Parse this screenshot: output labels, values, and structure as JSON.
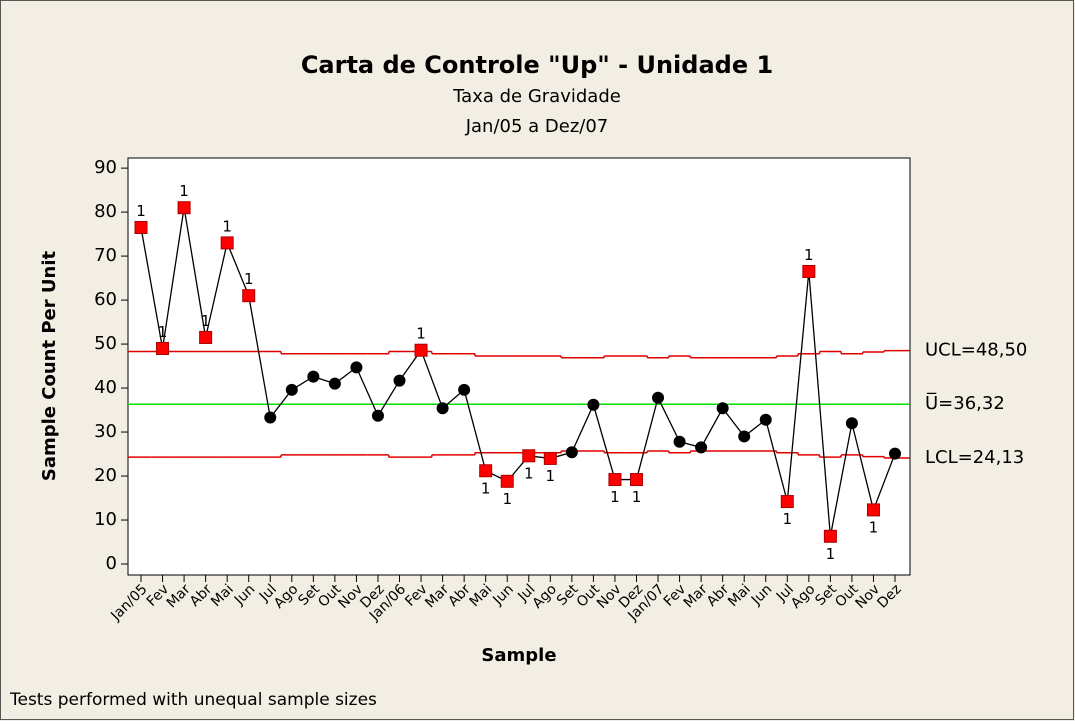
{
  "chart_data": {
    "type": "u-chart",
    "title": "Carta de Controle \"Up\" - Unidade 1",
    "subtitle": [
      "Taxa de Gravidade",
      "Jan/05 a Dez/07"
    ],
    "x_label": "Sample",
    "y_label": "Sample Count Per Unit",
    "footer": "Tests performed with unequal sample sizes",
    "categories": [
      "Jan/05",
      "Fev",
      "Mar",
      "Abr",
      "Mai",
      "Jun",
      "Jul",
      "Ago",
      "Set",
      "Out",
      "Nov",
      "Dez",
      "Jan/06",
      "Fev",
      "Mar",
      "Abr",
      "Mai",
      "Jun",
      "Jul",
      "Ago",
      "Set",
      "Out",
      "Nov",
      "Dez",
      "Jan/07",
      "Fev",
      "Mar",
      "Abr",
      "Mai",
      "Jun",
      "Jul",
      "Ago",
      "Set",
      "Out",
      "Nov",
      "Dez"
    ],
    "values": [
      76.5,
      49,
      81,
      51.5,
      73,
      61,
      33.3,
      39.6,
      42.6,
      41,
      44.7,
      33.7,
      41.7,
      48.6,
      35.4,
      39.6,
      21.2,
      18.8,
      24.6,
      24,
      25.4,
      36.2,
      19.2,
      19.2,
      37.8,
      27.8,
      26.5,
      35.4,
      29,
      32.8,
      14.2,
      66.5,
      6.3,
      32,
      12.3,
      25.1
    ],
    "flags": [
      "1",
      "1",
      "1",
      "1",
      "1",
      "1",
      null,
      null,
      null,
      null,
      null,
      null,
      null,
      "1",
      null,
      null,
      "1",
      "1",
      "1",
      "1",
      null,
      null,
      "1",
      "1",
      null,
      null,
      null,
      null,
      null,
      null,
      "1",
      "1",
      "1",
      null,
      "1",
      null
    ],
    "ucl": [
      48.3,
      48.3,
      48.3,
      48.3,
      48.3,
      48.3,
      48.3,
      47.8,
      47.8,
      47.8,
      47.8,
      47.8,
      48.3,
      48.3,
      47.8,
      47.8,
      47.3,
      47.3,
      47.3,
      47.3,
      46.9,
      46.9,
      47.3,
      47.3,
      46.9,
      47.3,
      46.9,
      46.9,
      46.9,
      46.9,
      47.3,
      47.8,
      48.3,
      47.8,
      48.2,
      48.5
    ],
    "lcl": [
      24.3,
      24.3,
      24.3,
      24.3,
      24.3,
      24.3,
      24.3,
      24.8,
      24.8,
      24.8,
      24.8,
      24.8,
      24.3,
      24.3,
      24.8,
      24.8,
      25.3,
      25.3,
      25.3,
      25.3,
      25.7,
      25.7,
      25.3,
      25.3,
      25.7,
      25.3,
      25.7,
      25.7,
      25.7,
      25.7,
      25.3,
      24.8,
      24.3,
      24.8,
      24.4,
      24.1
    ],
    "center": 36.32,
    "limit_labels": [
      {
        "value": 48.5,
        "label": "UCL=48,50"
      },
      {
        "value": 36.32,
        "label": "U̅=36,32"
      },
      {
        "value": 24.13,
        "label": "LCL=24,13"
      }
    ],
    "colors": {
      "line": "#000000",
      "point": "#000000",
      "flagged": "#ff0000",
      "limits": "#e00000",
      "center": "#00e000"
    },
    "ylim": [
      -2.5,
      92.3
    ],
    "yticks": [
      0,
      10,
      20,
      30,
      40,
      50,
      60,
      70,
      80,
      90
    ]
  }
}
